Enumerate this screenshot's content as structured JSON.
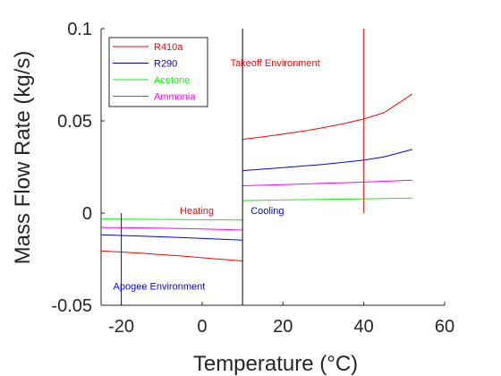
{
  "chart_data": {
    "type": "line",
    "title": "",
    "xlabel": "Temperature (°C)",
    "ylabel": "Mass Flow Rate (kg/s)",
    "xlim": [
      -25,
      60
    ],
    "ylim": [
      -0.05,
      0.1
    ],
    "xticks": [
      -20,
      0,
      20,
      40,
      60
    ],
    "xtick_labels": [
      "-20",
      "0",
      "20",
      "40",
      "60"
    ],
    "yticks": [
      -0.05,
      0,
      0.05,
      0.1
    ],
    "ytick_labels": [
      "-0.05",
      "0",
      "0.05",
      "0.1"
    ],
    "grid": false,
    "legend_position": "top-left",
    "series": [
      {
        "name": "R410a",
        "color": "#ff0000",
        "segments": [
          {
            "x": [
              -25,
              -15,
              -5,
              5,
              10
            ],
            "y": [
              -0.0205,
              -0.0218,
              -0.0233,
              -0.0251,
              -0.026
            ]
          },
          {
            "x": [
              10,
              15,
              20,
              25,
              30,
              35,
              40,
              45,
              52
            ],
            "y": [
              0.04,
              0.0413,
              0.0428,
              0.0444,
              0.0463,
              0.0485,
              0.051,
              0.0544,
              0.0645
            ]
          }
        ]
      },
      {
        "name": "R290",
        "color": "#0000ff",
        "segments": [
          {
            "x": [
              -25,
              -15,
              -5,
              5,
              10
            ],
            "y": [
              -0.0118,
              -0.0125,
              -0.0133,
              -0.0142,
              -0.0147
            ]
          },
          {
            "x": [
              10,
              20,
              30,
              40,
              45,
              52
            ],
            "y": [
              0.023,
              0.0246,
              0.0264,
              0.0287,
              0.0305,
              0.0345
            ]
          }
        ]
      },
      {
        "name": "Acetone",
        "color": "#00ff00",
        "segments": [
          {
            "x": [
              -25,
              10
            ],
            "y": [
              -0.0032,
              -0.0038
            ]
          },
          {
            "x": [
              10,
              20,
              30,
              40,
              52
            ],
            "y": [
              0.0068,
              0.0071,
              0.0074,
              0.0077,
              0.0081
            ]
          }
        ]
      },
      {
        "name": "Ammonia",
        "color": "#ff00ff",
        "segments": [
          {
            "x": [
              -25,
              -10,
              0,
              10
            ],
            "y": [
              -0.0078,
              -0.0082,
              -0.0086,
              -0.0092
            ]
          },
          {
            "x": [
              10,
              20,
              30,
              40,
              52
            ],
            "y": [
              0.0148,
              0.0154,
              0.0161,
              0.0168,
              0.0178
            ]
          }
        ]
      }
    ],
    "reference_lines": [
      {
        "orientation": "vertical",
        "x": 10,
        "y": [
          -0.05,
          0.1
        ],
        "color": "#000000"
      },
      {
        "orientation": "vertical",
        "x": 40,
        "y": [
          0,
          0.1
        ],
        "color": "#ff0000"
      },
      {
        "orientation": "vertical",
        "x": -20,
        "y": [
          -0.05,
          0
        ],
        "color": "#0000ff"
      }
    ],
    "annotations": [
      {
        "text": "Takeoff Environment",
        "x": 7,
        "y": 0.0795,
        "color": "#ff0000"
      },
      {
        "text": "Heating",
        "x": -5.5,
        "y": -0.0005,
        "color": "#ff0000"
      },
      {
        "text": "Cooling",
        "x": 12,
        "y": -0.0005,
        "color": "#0000ff"
      },
      {
        "text": "Apogee Environment",
        "x": -22,
        "y": -0.0415,
        "color": "#0000ff"
      }
    ]
  }
}
